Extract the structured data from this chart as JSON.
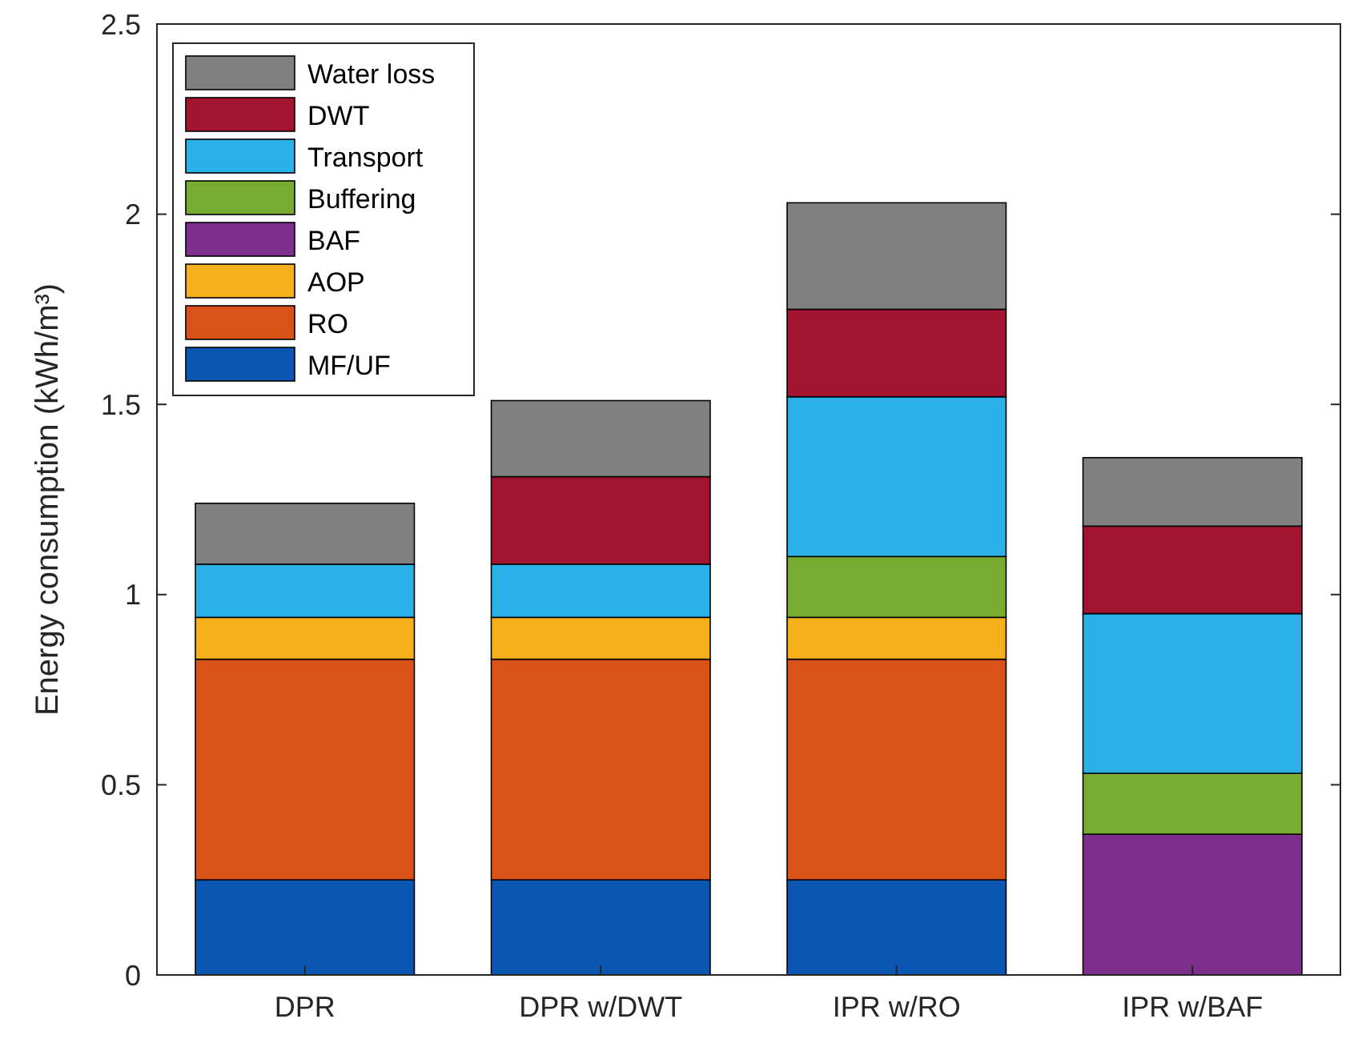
{
  "chart_data": {
    "type": "bar",
    "stacked": true,
    "ylabel": "Energy consumption (kWh/m³)",
    "categories": [
      "DPR",
      "DPR w/DWT",
      "IPR w/RO",
      "IPR w/BAF"
    ],
    "ylim": [
      0,
      2.5
    ],
    "yticks": [
      0,
      0.5,
      1,
      1.5,
      2,
      2.5
    ],
    "legend": "top left",
    "grid": false,
    "series": [
      {
        "name": "MF/UF",
        "color": "#0a56b0",
        "values": [
          0.25,
          0.25,
          0.25,
          0
        ]
      },
      {
        "name": "RO",
        "color": "#d95319",
        "values": [
          0.58,
          0.58,
          0.58,
          0
        ]
      },
      {
        "name": "AOP",
        "color": "#f6b01c",
        "values": [
          0.11,
          0.11,
          0.11,
          0
        ]
      },
      {
        "name": "BAF",
        "color": "#7e2f8e",
        "values": [
          0,
          0,
          0,
          0.37
        ]
      },
      {
        "name": "Buffering",
        "color": "#77ac30",
        "values": [
          0,
          0,
          0.16,
          0.16
        ]
      },
      {
        "name": "Transport",
        "color": "#2bb1e8",
        "values": [
          0.14,
          0.14,
          0.42,
          0.42
        ]
      },
      {
        "name": "DWT",
        "color": "#a2142f",
        "values": [
          0,
          0.23,
          0.23,
          0.23
        ]
      },
      {
        "name": "Water loss",
        "color": "#808080",
        "values": [
          0.16,
          0.2,
          0.28,
          0.18
        ]
      }
    ]
  }
}
